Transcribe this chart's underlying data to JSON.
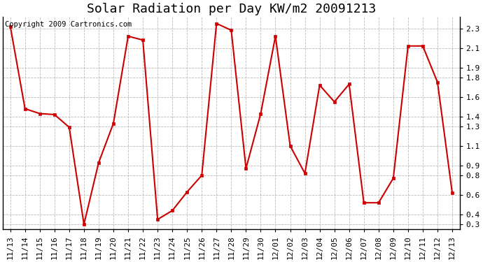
{
  "title": "Solar Radiation per Day KW/m2 20091213",
  "copyright": "Copyright 2009 Cartronics.com",
  "dates": [
    "11/13",
    "11/14",
    "11/15",
    "11/16",
    "11/17",
    "11/18",
    "11/19",
    "11/20",
    "11/21",
    "11/22",
    "11/23",
    "11/24",
    "11/25",
    "11/26",
    "11/27",
    "11/28",
    "11/29",
    "11/30",
    "12/01",
    "12/02",
    "12/03",
    "12/04",
    "12/05",
    "12/06",
    "12/07",
    "12/08",
    "12/09",
    "12/10",
    "12/11",
    "12/12",
    "12/13"
  ],
  "values": [
    2.32,
    1.48,
    1.43,
    1.42,
    1.29,
    0.3,
    0.93,
    1.33,
    2.22,
    2.18,
    0.35,
    0.44,
    0.63,
    0.8,
    2.35,
    2.28,
    0.87,
    1.43,
    2.22,
    1.1,
    0.82,
    1.72,
    1.55,
    1.73,
    0.52,
    0.52,
    0.77,
    2.12,
    2.12,
    1.75,
    0.62
  ],
  "line_color": "#cc0000",
  "marker_color": "#cc0000",
  "bg_color": "#ffffff",
  "grid_color": "#aaaaaa",
  "ylim": [
    0.25,
    2.42
  ],
  "yticks": [
    2.3,
    2.1,
    1.9,
    1.8,
    1.6,
    1.4,
    1.3,
    1.1,
    0.9,
    0.8,
    0.6,
    0.4,
    0.3
  ],
  "title_fontsize": 13,
  "tick_fontsize": 8,
  "copyright_fontsize": 7.5
}
